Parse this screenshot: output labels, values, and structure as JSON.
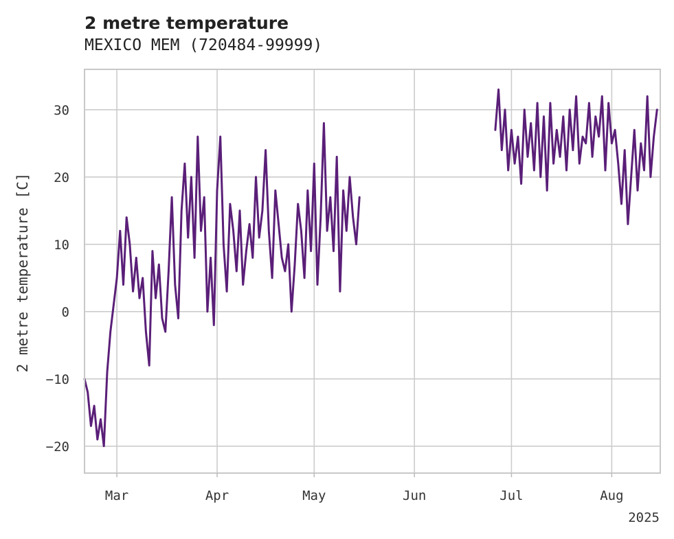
{
  "chart_data": {
    "type": "line",
    "title": "2 metre temperature",
    "subtitle": "MEXICO MEM (720484-99999)",
    "ylabel": "2 metre temperature [C]",
    "xlabel": "",
    "year_label": "2025",
    "xlim": [
      "2025-02-19",
      "2025-08-16"
    ],
    "ylim": [
      -24,
      36
    ],
    "yticks": [
      -20,
      -10,
      0,
      10,
      20,
      30
    ],
    "xticks": [
      {
        "date": "2025-03-01",
        "label": "Mar"
      },
      {
        "date": "2025-04-01",
        "label": "Apr"
      },
      {
        "date": "2025-05-01",
        "label": "May"
      },
      {
        "date": "2025-06-01",
        "label": "Jun"
      },
      {
        "date": "2025-07-01",
        "label": "Jul"
      },
      {
        "date": "2025-08-01",
        "label": "Aug"
      }
    ],
    "grid": true,
    "legend": "none",
    "series_color": "#5a1f78",
    "series": [
      {
        "segments": [
          {
            "x": [
              "2025-02-19",
              "2025-02-20",
              "2025-02-21",
              "2025-02-22",
              "2025-02-23",
              "2025-02-24",
              "2025-02-25",
              "2025-02-26",
              "2025-02-27",
              "2025-02-28",
              "2025-03-01",
              "2025-03-02",
              "2025-03-03",
              "2025-03-04",
              "2025-03-05",
              "2025-03-06",
              "2025-03-07",
              "2025-03-08",
              "2025-03-09",
              "2025-03-10",
              "2025-03-11",
              "2025-03-12",
              "2025-03-13",
              "2025-03-14",
              "2025-03-15",
              "2025-03-16",
              "2025-03-17",
              "2025-03-18",
              "2025-03-19",
              "2025-03-20",
              "2025-03-21",
              "2025-03-22",
              "2025-03-23",
              "2025-03-24",
              "2025-03-25",
              "2025-03-26",
              "2025-03-27",
              "2025-03-28",
              "2025-03-29",
              "2025-03-30",
              "2025-03-31",
              "2025-04-01",
              "2025-04-02",
              "2025-04-03",
              "2025-04-04",
              "2025-04-05",
              "2025-04-06",
              "2025-04-07",
              "2025-04-08",
              "2025-04-09",
              "2025-04-10",
              "2025-04-11",
              "2025-04-12",
              "2025-04-13",
              "2025-04-14",
              "2025-04-15",
              "2025-04-16",
              "2025-04-17",
              "2025-04-18",
              "2025-04-19",
              "2025-04-20",
              "2025-04-21",
              "2025-04-22",
              "2025-04-23",
              "2025-04-24",
              "2025-04-25",
              "2025-04-26",
              "2025-04-27",
              "2025-04-28",
              "2025-04-29",
              "2025-04-30",
              "2025-05-01",
              "2025-05-02",
              "2025-05-03",
              "2025-05-04",
              "2025-05-05",
              "2025-05-06",
              "2025-05-07",
              "2025-05-08",
              "2025-05-09",
              "2025-05-10",
              "2025-05-11",
              "2025-05-12",
              "2025-05-13",
              "2025-05-14",
              "2025-05-15"
            ],
            "y": [
              -10,
              -12,
              -17,
              -14,
              -19,
              -16,
              -20,
              -9,
              -3,
              1,
              5,
              12,
              4,
              14,
              10,
              3,
              8,
              2,
              5,
              -3,
              -8,
              9,
              2,
              7,
              -1,
              -3,
              6,
              17,
              4,
              -1,
              15,
              22,
              11,
              20,
              8,
              26,
              12,
              17,
              0,
              8,
              -2,
              18,
              26,
              10,
              3,
              16,
              12,
              6,
              15,
              4,
              9,
              13,
              8,
              20,
              11,
              15,
              24,
              12,
              5,
              18,
              13,
              8,
              6,
              10,
              0,
              7,
              16,
              12,
              5,
              18,
              9,
              22,
              4,
              14,
              28,
              12,
              17,
              9,
              23,
              3,
              18,
              12,
              20,
              14,
              10,
              17
            ]
          },
          {
            "x": [
              "2025-06-26",
              "2025-06-27",
              "2025-06-28",
              "2025-06-29",
              "2025-06-30",
              "2025-07-01",
              "2025-07-02",
              "2025-07-03",
              "2025-07-04",
              "2025-07-05",
              "2025-07-06",
              "2025-07-07",
              "2025-07-08",
              "2025-07-09",
              "2025-07-10",
              "2025-07-11",
              "2025-07-12",
              "2025-07-13",
              "2025-07-14",
              "2025-07-15",
              "2025-07-16",
              "2025-07-17",
              "2025-07-18",
              "2025-07-19",
              "2025-07-20",
              "2025-07-21",
              "2025-07-22",
              "2025-07-23",
              "2025-07-24",
              "2025-07-25",
              "2025-07-26",
              "2025-07-27",
              "2025-07-28",
              "2025-07-29",
              "2025-07-30",
              "2025-07-31",
              "2025-08-01",
              "2025-08-02",
              "2025-08-03",
              "2025-08-04",
              "2025-08-05",
              "2025-08-06",
              "2025-08-07",
              "2025-08-08",
              "2025-08-09",
              "2025-08-10",
              "2025-08-11",
              "2025-08-12",
              "2025-08-13",
              "2025-08-14",
              "2025-08-15"
            ],
            "y": [
              27,
              33,
              24,
              30,
              21,
              27,
              22,
              26,
              19,
              30,
              23,
              28,
              21,
              31,
              20,
              29,
              18,
              31,
              22,
              27,
              23,
              29,
              21,
              30,
              24,
              32,
              22,
              26,
              25,
              31,
              23,
              29,
              26,
              32,
              21,
              31,
              25,
              27,
              22,
              16,
              24,
              13,
              20,
              27,
              18,
              25,
              21,
              32,
              20,
              26,
              30
            ]
          }
        ]
      }
    ]
  }
}
